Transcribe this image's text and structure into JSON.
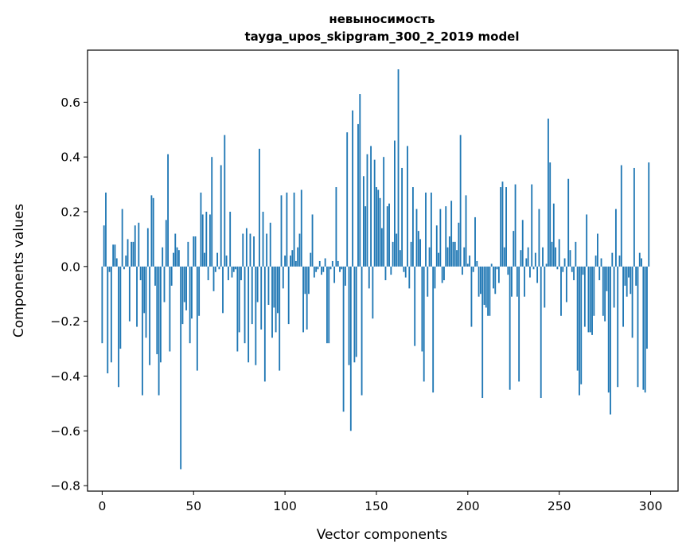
{
  "chart_data": {
    "type": "bar",
    "title": "невыносимость",
    "subtitle": "tayga_upos_skipgram_300_2_2019 model",
    "xlabel": "Vector components",
    "ylabel": "Components values",
    "xlim": [
      -8,
      315
    ],
    "ylim": [
      -0.82,
      0.79
    ],
    "xticks": [
      0,
      50,
      100,
      150,
      200,
      250,
      300
    ],
    "xtick_labels": [
      "0",
      "50",
      "100",
      "150",
      "200",
      "250",
      "300"
    ],
    "yticks": [
      -0.8,
      -0.6,
      -0.4,
      -0.2,
      0.0,
      0.2,
      0.4,
      0.6
    ],
    "ytick_labels": [
      "−0.8",
      "−0.6",
      "−0.4",
      "−0.2",
      "0.0",
      "0.2",
      "0.4",
      "0.6"
    ],
    "grid": false,
    "bar_color": "#1f77b4",
    "x": "0..299",
    "values": [
      -0.28,
      0.15,
      0.27,
      -0.39,
      -0.02,
      -0.35,
      0.08,
      0.08,
      0.03,
      -0.44,
      -0.3,
      0.21,
      -0.01,
      0.04,
      0.1,
      -0.2,
      0.09,
      0.09,
      0.15,
      -0.22,
      0.16,
      -0.05,
      -0.47,
      -0.17,
      -0.26,
      0.14,
      -0.36,
      0.26,
      0.25,
      -0.07,
      -0.32,
      -0.47,
      -0.35,
      0.07,
      -0.13,
      0.17,
      0.41,
      -0.31,
      -0.07,
      0.05,
      0.12,
      0.07,
      0.06,
      -0.74,
      -0.21,
      -0.13,
      -0.16,
      0.09,
      -0.28,
      -0.19,
      0.11,
      0.11,
      -0.38,
      -0.18,
      0.27,
      0.19,
      0.05,
      0.2,
      -0.05,
      0.19,
      0.4,
      -0.09,
      -0.02,
      0.05,
      -0.01,
      0.37,
      -0.17,
      0.48,
      0.04,
      -0.05,
      0.2,
      -0.04,
      -0.02,
      -0.01,
      -0.31,
      -0.24,
      -0.05,
      0.12,
      -0.28,
      0.14,
      -0.35,
      0.12,
      -0.21,
      0.11,
      -0.36,
      -0.13,
      0.43,
      -0.23,
      0.2,
      -0.42,
      0.12,
      -0.14,
      0.16,
      -0.26,
      -0.15,
      -0.24,
      -0.17,
      -0.38,
      0.26,
      -0.08,
      0.04,
      0.27,
      -0.21,
      0.04,
      0.06,
      0.27,
      0.02,
      0.07,
      0.12,
      0.28,
      -0.24,
      -0.1,
      -0.23,
      -0.1,
      0.05,
      0.19,
      -0.04,
      -0.02,
      -0.01,
      0.02,
      -0.03,
      -0.02,
      0.03,
      -0.28,
      -0.28,
      -0.01,
      0.02,
      -0.06,
      0.29,
      0.02,
      -0.02,
      -0.01,
      -0.53,
      -0.07,
      0.49,
      -0.36,
      -0.6,
      0.57,
      -0.35,
      -0.33,
      0.52,
      0.63,
      -0.47,
      0.33,
      0.22,
      0.41,
      -0.08,
      0.44,
      -0.19,
      0.39,
      0.29,
      0.28,
      0.25,
      0.14,
      0.4,
      -0.05,
      0.22,
      0.23,
      -0.03,
      0.09,
      0.46,
      0.12,
      0.72,
      0.06,
      0.36,
      -0.02,
      -0.04,
      0.44,
      -0.08,
      0.09,
      0.29,
      -0.29,
      0.21,
      0.13,
      0.1,
      -0.31,
      -0.42,
      0.27,
      -0.11,
      0.07,
      0.27,
      -0.46,
      -0.08,
      0.15,
      0.05,
      0.21,
      -0.06,
      -0.05,
      0.22,
      0.07,
      0.11,
      0.24,
      0.09,
      0.09,
      0.06,
      0.16,
      0.48,
      -0.03,
      0.07,
      0.26,
      0.01,
      0.04,
      -0.22,
      -0.02,
      0.18,
      0.02,
      -0.11,
      -0.1,
      -0.48,
      -0.14,
      -0.15,
      -0.18,
      -0.18,
      0.01,
      -0.08,
      -0.1,
      -0.01,
      -0.06,
      0.29,
      0.31,
      0.07,
      0.29,
      -0.03,
      -0.45,
      -0.11,
      0.13,
      0.3,
      -0.11,
      -0.42,
      0.06,
      0.17,
      -0.11,
      0.03,
      0.07,
      -0.04,
      0.3,
      -0.01,
      0.05,
      -0.06,
      0.21,
      -0.48,
      0.07,
      -0.15,
      0.01,
      0.54,
      0.38,
      0.09,
      0.23,
      0.07,
      -0.01,
      0.1,
      -0.18,
      -0.02,
      0.03,
      -0.13,
      0.32,
      0.06,
      -0.02,
      -0.05,
      0.09,
      -0.38,
      -0.47,
      -0.43,
      -0.03,
      -0.22,
      0.19,
      -0.24,
      -0.24,
      -0.25,
      -0.18,
      0.04,
      0.12,
      -0.05,
      0.03,
      -0.18,
      -0.2,
      -0.09,
      -0.46,
      -0.54,
      0.05,
      -0.15,
      0.21,
      -0.44,
      0.04,
      0.37,
      -0.22,
      -0.07,
      -0.11,
      -0.04,
      -0.1,
      -0.26,
      0.36,
      -0.07,
      -0.44,
      0.05,
      0.03,
      -0.45,
      -0.46,
      -0.3,
      0.38
    ]
  }
}
